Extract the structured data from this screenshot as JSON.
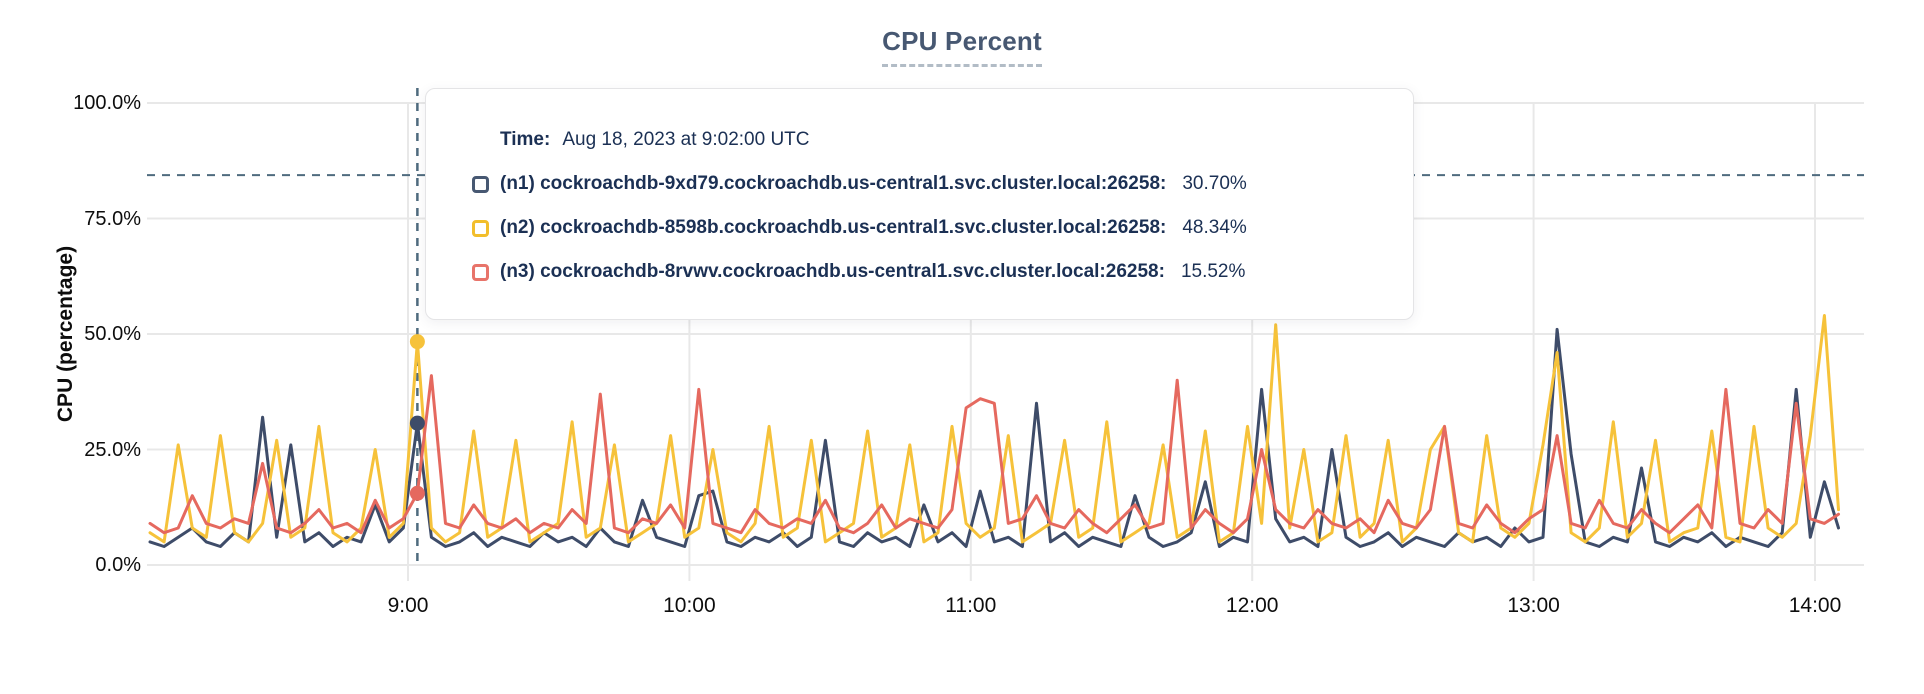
{
  "title": "CPU Percent",
  "y_axis": {
    "label": "CPU (percentage)",
    "ticks": [
      "0.0%",
      "25.0%",
      "50.0%",
      "75.0%",
      "100.0%"
    ]
  },
  "x_axis": {
    "ticks": [
      "9:00",
      "10:00",
      "11:00",
      "12:00",
      "13:00",
      "14:00"
    ]
  },
  "tooltip": {
    "time_label": "Time:",
    "time_value": "Aug 18, 2023 at 9:02:00 UTC",
    "rows": [
      {
        "name": "(n1) cockroachdb-9xd79.cockroachdb.us-central1.svc.cluster.local:26258:",
        "value": "30.70%",
        "color": "#475872"
      },
      {
        "name": "(n2) cockroachdb-8598b.cockroachdb.us-central1.svc.cluster.local:26258:",
        "value": "48.34%",
        "color": "#f2be2c"
      },
      {
        "name": "(n3) cockroachdb-8rvwv.cockroachdb.us-central1.svc.cluster.local:26258:",
        "value": "15.52%",
        "color": "#e8746a"
      }
    ]
  },
  "colors": {
    "title": "#475872",
    "axis_text": "#0d0d0d",
    "gridline": "#e8e8e8",
    "crosshair": "#4f6b7e",
    "tooltip_text": "#1b3054",
    "series_n1": "#3e4c69",
    "series_n2": "#f6c23a",
    "series_n3": "#e5695f"
  },
  "chart_data": {
    "type": "line",
    "title": "CPU Percent",
    "xlabel": "",
    "ylabel": "CPU (percentage)",
    "ylim": [
      0,
      100
    ],
    "y_ticks_percent": [
      0,
      25,
      50,
      75,
      100
    ],
    "y_tick_labels": [
      "0.0%",
      "25.0%",
      "50.0%",
      "75.0%",
      "100.0%"
    ],
    "x_start_minutes": 485,
    "x_step_minutes": 3,
    "x_tick_minutes": [
      540,
      600,
      660,
      720,
      780,
      840
    ],
    "x_tick_labels": [
      "9:00",
      "10:00",
      "11:00",
      "12:00",
      "13:00",
      "14:00"
    ],
    "grid": true,
    "legend_position": "tooltip-overlay",
    "hover": {
      "time_minutes": 542,
      "time_text": "Aug 18, 2023 at 9:02:00 UTC",
      "crosshair_y_percent": 84.4,
      "values": [
        30.7,
        48.34,
        15.52
      ]
    },
    "series": [
      {
        "name": "(n1) cockroachdb-9xd79.cockroachdb.us-central1.svc.cluster.local:26258",
        "color": "#3e4c69",
        "values": [
          5,
          4,
          6,
          8,
          5,
          4,
          7,
          5,
          32,
          6,
          26,
          5,
          7,
          4,
          6,
          5,
          13,
          5,
          8,
          30.7,
          6,
          4,
          5,
          7,
          4,
          6,
          5,
          4,
          7,
          5,
          6,
          4,
          8,
          5,
          4,
          14,
          6,
          5,
          4,
          15,
          16,
          5,
          4,
          6,
          5,
          7,
          4,
          6,
          27,
          5,
          4,
          7,
          5,
          6,
          4,
          13,
          5,
          7,
          4,
          16,
          5,
          6,
          4,
          35,
          5,
          7,
          4,
          6,
          5,
          4,
          15,
          6,
          4,
          5,
          7,
          18,
          4,
          6,
          5,
          38,
          10,
          5,
          6,
          4,
          25,
          6,
          4,
          5,
          7,
          4,
          6,
          5,
          4,
          7,
          5,
          6,
          4,
          8,
          5,
          6,
          51,
          24,
          5,
          4,
          6,
          5,
          21,
          5,
          4,
          6,
          5,
          7,
          4,
          6,
          5,
          4,
          7,
          38,
          6,
          18,
          8
        ]
      },
      {
        "name": "(n2) cockroachdb-8598b.cockroachdb.us-central1.svc.cluster.local:26258",
        "color": "#f6c23a",
        "values": [
          7,
          5,
          26,
          8,
          6,
          28,
          7,
          5,
          9,
          27,
          6,
          8,
          30,
          7,
          5,
          8,
          25,
          6,
          9,
          48.34,
          8,
          5,
          7,
          29,
          6,
          8,
          27,
          5,
          7,
          9,
          31,
          6,
          8,
          26,
          5,
          7,
          9,
          28,
          6,
          8,
          25,
          7,
          5,
          9,
          30,
          6,
          8,
          27,
          5,
          7,
          9,
          29,
          6,
          8,
          26,
          5,
          7,
          30,
          9,
          6,
          8,
          28,
          5,
          7,
          9,
          27,
          6,
          8,
          31,
          5,
          7,
          9,
          26,
          6,
          8,
          29,
          5,
          7,
          30,
          9,
          52,
          8,
          25,
          5,
          7,
          28,
          6,
          9,
          27,
          5,
          8,
          25,
          30,
          7,
          5,
          28,
          8,
          6,
          9,
          26,
          46,
          7,
          5,
          8,
          31,
          6,
          9,
          27,
          5,
          7,
          8,
          29,
          6,
          5,
          30,
          8,
          6,
          9,
          28,
          54,
          12
        ]
      },
      {
        "name": "(n3) cockroachdb-8rvwv.cockroachdb.us-central1.svc.cluster.local:26258",
        "color": "#e5695f",
        "values": [
          9,
          7,
          8,
          15,
          9,
          8,
          10,
          9,
          22,
          8,
          7,
          9,
          12,
          8,
          9,
          7,
          14,
          8,
          10,
          15.52,
          41,
          9,
          8,
          13,
          9,
          8,
          10,
          7,
          9,
          8,
          12,
          9,
          37,
          8,
          7,
          10,
          9,
          13,
          8,
          38,
          9,
          8,
          7,
          12,
          9,
          8,
          10,
          9,
          14,
          8,
          7,
          9,
          13,
          8,
          10,
          9,
          8,
          12,
          34,
          36,
          35,
          9,
          10,
          15,
          9,
          8,
          12,
          9,
          7,
          10,
          13,
          8,
          9,
          40,
          8,
          12,
          9,
          7,
          10,
          25,
          12,
          9,
          8,
          12,
          9,
          8,
          10,
          7,
          14,
          9,
          8,
          12,
          30,
          9,
          8,
          13,
          9,
          7,
          10,
          12,
          28,
          9,
          8,
          14,
          9,
          8,
          12,
          9,
          7,
          10,
          13,
          8,
          38,
          9,
          8,
          12,
          9,
          35,
          10,
          9,
          11
        ]
      }
    ]
  }
}
